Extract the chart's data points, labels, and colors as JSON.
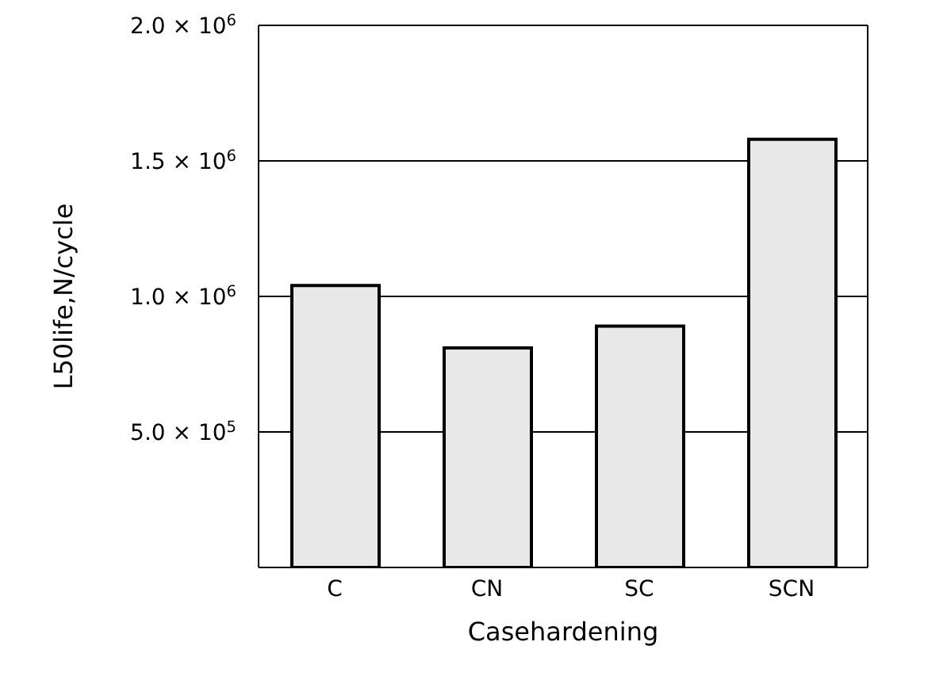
{
  "chart_data": {
    "type": "bar",
    "xlabel": "Casehardening",
    "ylabel": "L50life,N/cycle",
    "categories": [
      "C",
      "CN",
      "SC",
      "SCN"
    ],
    "values": [
      1040000,
      810000,
      890000,
      1580000
    ],
    "color": "#e8e8e8",
    "ylim": [
      0,
      2000000
    ],
    "yticks": [
      {
        "value": 500000,
        "label": "5.0 × 10$^{5}$"
      },
      {
        "value": 1000000,
        "label": "1.0 × 10$^{6}$"
      },
      {
        "value": 1500000,
        "label": "1.5 × 10$^{6}$"
      },
      {
        "value": 2000000,
        "label": "2.0 × 10$^{6}$"
      }
    ],
    "grid": "y"
  }
}
